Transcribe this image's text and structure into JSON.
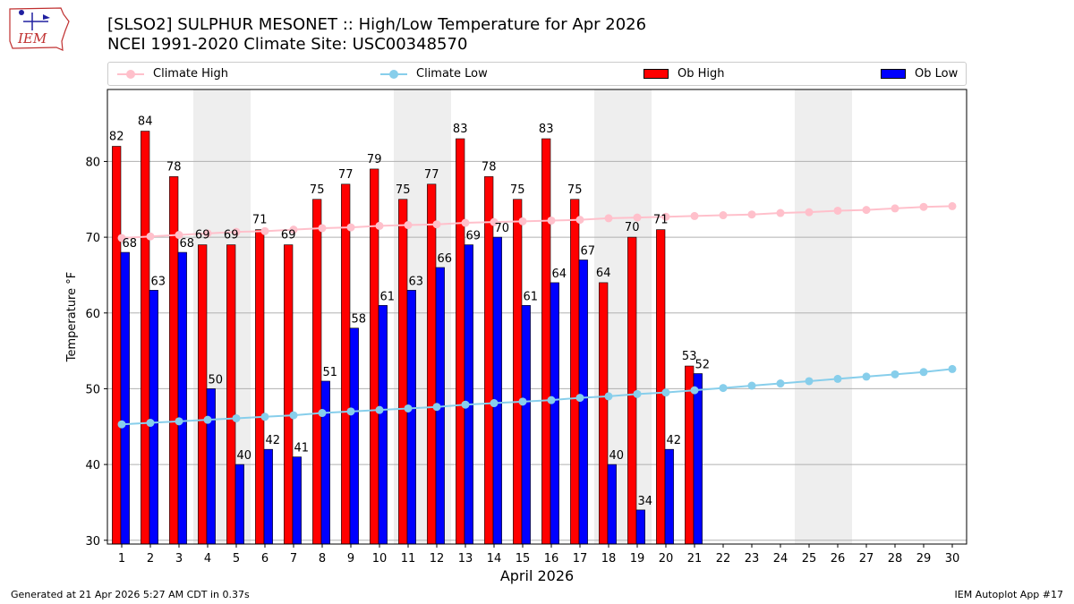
{
  "title": {
    "line1": "[SLSO2] SULPHUR MESONET :: High/Low Temperature for Apr 2026",
    "line2": "NCEI 1991-2020 Climate Site: USC00348570"
  },
  "logo": {
    "text": "IEM"
  },
  "legend": {
    "climate_high": "Climate High",
    "climate_low": "Climate Low",
    "ob_high": "Ob High",
    "ob_low": "Ob Low"
  },
  "footer": {
    "left": "Generated at 21 Apr 2026 5:27 AM CDT in 0.37s",
    "right": "IEM Autoplot App #17"
  },
  "colors": {
    "ob_high": "#ff0000",
    "ob_low": "#0000ff",
    "climate_high": "#ffc0cb",
    "climate_low": "#87ceeb",
    "weekend_shade": "#eeeeee",
    "grid": "#b0b0b0"
  },
  "chart_data": {
    "type": "bar",
    "xlabel": "April 2026",
    "ylabel": "Temperature °F",
    "ylim": [
      29.5,
      89.5
    ],
    "yticks": [
      30,
      40,
      50,
      60,
      70,
      80
    ],
    "x": [
      1,
      2,
      3,
      4,
      5,
      6,
      7,
      8,
      9,
      10,
      11,
      12,
      13,
      14,
      15,
      16,
      17,
      18,
      19,
      20,
      21,
      22,
      23,
      24,
      25,
      26,
      27,
      28,
      29,
      30
    ],
    "shaded_days": [
      4,
      5,
      11,
      12,
      18,
      19,
      25,
      26
    ],
    "series": [
      {
        "name": "Ob High",
        "type": "bar",
        "values": [
          82,
          84,
          78,
          69,
          69,
          71,
          69,
          75,
          77,
          79,
          75,
          77,
          83,
          78,
          75,
          83,
          75,
          64,
          70,
          71,
          53,
          null,
          null,
          null,
          null,
          null,
          null,
          null,
          null,
          null
        ]
      },
      {
        "name": "Ob Low",
        "type": "bar",
        "values": [
          68,
          63,
          68,
          50,
          40,
          42,
          41,
          51,
          58,
          61,
          63,
          66,
          69,
          70,
          61,
          64,
          67,
          40,
          34,
          42,
          52,
          null,
          null,
          null,
          null,
          null,
          null,
          null,
          null,
          null
        ]
      },
      {
        "name": "Climate High",
        "type": "line",
        "values": [
          69.9,
          70.1,
          70.3,
          70.5,
          70.7,
          70.8,
          71.0,
          71.2,
          71.3,
          71.5,
          71.6,
          71.7,
          71.9,
          72.0,
          72.1,
          72.2,
          72.3,
          72.5,
          72.6,
          72.7,
          72.8,
          72.9,
          73.0,
          73.2,
          73.3,
          73.5,
          73.6,
          73.8,
          74.0,
          74.1
        ]
      },
      {
        "name": "Climate Low",
        "type": "line",
        "values": [
          45.3,
          45.5,
          45.7,
          45.9,
          46.1,
          46.3,
          46.5,
          46.8,
          47.0,
          47.2,
          47.4,
          47.6,
          47.9,
          48.1,
          48.3,
          48.5,
          48.8,
          49.0,
          49.3,
          49.5,
          49.8,
          50.1,
          50.4,
          50.7,
          51.0,
          51.3,
          51.6,
          51.9,
          52.2,
          52.6
        ]
      }
    ]
  }
}
